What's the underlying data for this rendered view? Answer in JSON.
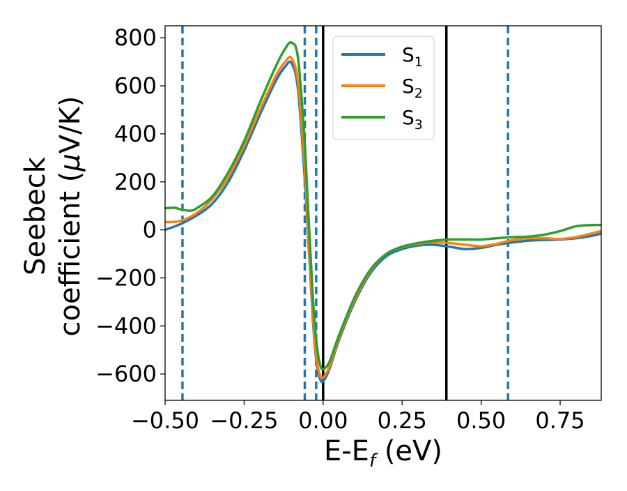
{
  "chart_data": {
    "type": "line",
    "xlabel_main": "E-E",
    "xlabel_sub": "f",
    "xlabel_unit": " (eV)",
    "ylabel_line1": "Seebeck",
    "ylabel_line2_prefix": "coefficient  (",
    "ylabel_mu": "μ",
    "ylabel_line2_suffix": "V/K)",
    "xlim": [
      -0.5,
      0.88
    ],
    "ylim": [
      -710,
      850
    ],
    "xticks": [
      {
        "value": -0.5,
        "label": "−0.50"
      },
      {
        "value": -0.25,
        "label": "−0.25"
      },
      {
        "value": 0.0,
        "label": "0.00"
      },
      {
        "value": 0.25,
        "label": "0.25"
      },
      {
        "value": 0.5,
        "label": "0.50"
      },
      {
        "value": 0.75,
        "label": "0.75"
      }
    ],
    "yticks": [
      {
        "value": 800,
        "label": "800"
      },
      {
        "value": 600,
        "label": "600"
      },
      {
        "value": 400,
        "label": "400"
      },
      {
        "value": 200,
        "label": "200"
      },
      {
        "value": 0,
        "label": "0"
      },
      {
        "value": -200,
        "label": "−200"
      },
      {
        "value": -400,
        "label": "−400"
      },
      {
        "value": -600,
        "label": "−600"
      }
    ],
    "grid": false,
    "legend_position": "top-right",
    "vlines_solid": [
      0.0,
      0.39
    ],
    "vlines_dashed": [
      -0.445,
      -0.058,
      -0.022,
      0.585
    ],
    "vline_solid_color": "#000000",
    "vline_dashed_color": "#1f77b4",
    "series": [
      {
        "name_base": "S",
        "name_sub": "1",
        "color": "#1f77b4",
        "x": [
          -0.5,
          -0.45,
          -0.4,
          -0.35,
          -0.3,
          -0.25,
          -0.2,
          -0.15,
          -0.12,
          -0.1,
          -0.08,
          -0.06,
          -0.05,
          -0.04,
          -0.03,
          -0.02,
          -0.01,
          0.0,
          0.02,
          0.05,
          0.1,
          0.15,
          0.2,
          0.25,
          0.3,
          0.35,
          0.4,
          0.45,
          0.5,
          0.55,
          0.6,
          0.65,
          0.7,
          0.75,
          0.8,
          0.85,
          0.88
        ],
        "y": [
          0,
          25,
          60,
          110,
          200,
          330,
          480,
          620,
          680,
          695,
          590,
          250,
          30,
          -200,
          -420,
          -560,
          -620,
          -630,
          -580,
          -460,
          -300,
          -180,
          -110,
          -80,
          -65,
          -62,
          -70,
          -80,
          -75,
          -62,
          -52,
          -45,
          -42,
          -40,
          -35,
          -25,
          -15
        ]
      },
      {
        "name_base": "S",
        "name_sub": "2",
        "color": "#ff7f0e",
        "x": [
          -0.5,
          -0.45,
          -0.4,
          -0.35,
          -0.3,
          -0.25,
          -0.2,
          -0.15,
          -0.12,
          -0.1,
          -0.08,
          -0.06,
          -0.05,
          -0.04,
          -0.03,
          -0.02,
          -0.01,
          0.0,
          0.02,
          0.05,
          0.1,
          0.15,
          0.2,
          0.25,
          0.3,
          0.35,
          0.4,
          0.45,
          0.5,
          0.55,
          0.6,
          0.65,
          0.7,
          0.75,
          0.8,
          0.85,
          0.88
        ],
        "y": [
          32,
          38,
          70,
          130,
          220,
          350,
          500,
          640,
          700,
          715,
          620,
          300,
          60,
          -180,
          -400,
          -545,
          -605,
          -615,
          -570,
          -450,
          -290,
          -170,
          -100,
          -72,
          -58,
          -52,
          -55,
          -62,
          -68,
          -58,
          -42,
          -35,
          -35,
          -38,
          -30,
          -15,
          -5
        ]
      },
      {
        "name_base": "S",
        "name_sub": "3",
        "color": "#2ca02c",
        "x": [
          -0.5,
          -0.47,
          -0.45,
          -0.42,
          -0.4,
          -0.35,
          -0.3,
          -0.25,
          -0.2,
          -0.15,
          -0.12,
          -0.1,
          -0.08,
          -0.06,
          -0.05,
          -0.04,
          -0.03,
          -0.02,
          -0.01,
          0.0,
          0.02,
          0.05,
          0.1,
          0.15,
          0.2,
          0.25,
          0.3,
          0.35,
          0.4,
          0.45,
          0.5,
          0.55,
          0.6,
          0.65,
          0.7,
          0.75,
          0.8,
          0.85,
          0.88
        ],
        "y": [
          90,
          92,
          85,
          80,
          90,
          140,
          240,
          370,
          530,
          680,
          755,
          780,
          720,
          400,
          150,
          -100,
          -330,
          -480,
          -560,
          -580,
          -550,
          -440,
          -280,
          -165,
          -100,
          -70,
          -55,
          -45,
          -40,
          -40,
          -40,
          -35,
          -30,
          -28,
          -20,
          -5,
          15,
          20,
          20
        ]
      }
    ]
  }
}
